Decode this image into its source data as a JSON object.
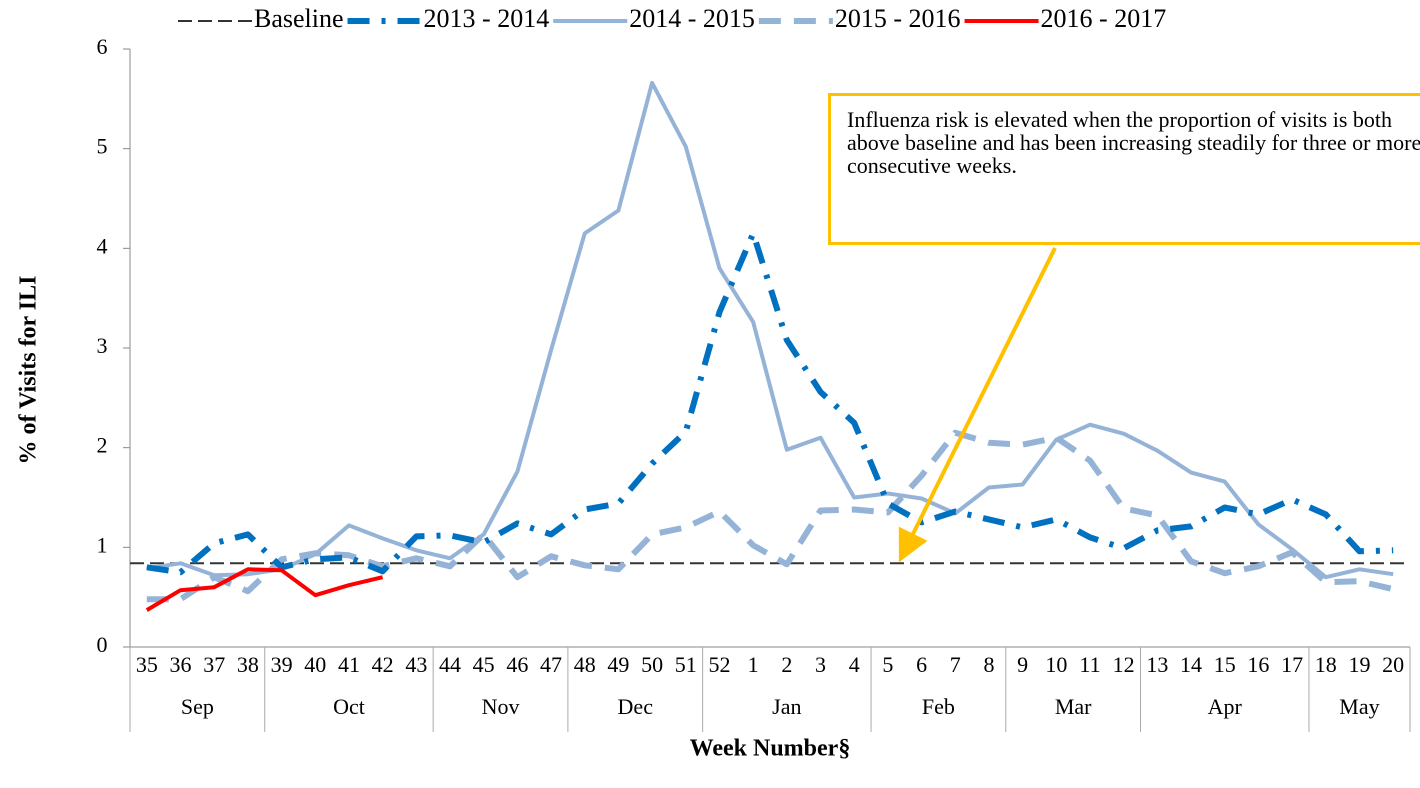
{
  "chart_data": {
    "type": "line",
    "ylabel": "% of Visits for ILI",
    "xlabel": "Week Number§",
    "categories": [
      "35",
      "36",
      "37",
      "38",
      "39",
      "40",
      "41",
      "42",
      "43",
      "44",
      "45",
      "46",
      "47",
      "48",
      "49",
      "50",
      "51",
      "52",
      "1",
      "2",
      "3",
      "4",
      "5",
      "6",
      "7",
      "8",
      "9",
      "10",
      "11",
      "12",
      "13",
      "14",
      "15",
      "16",
      "17",
      "18",
      "19",
      "20"
    ],
    "month_groups": [
      {
        "label": "Sep",
        "count": 4
      },
      {
        "label": "Oct",
        "count": 5
      },
      {
        "label": "Nov",
        "count": 4
      },
      {
        "label": "Dec",
        "count": 4
      },
      {
        "label": "Jan",
        "count": 5
      },
      {
        "label": "Feb",
        "count": 4
      },
      {
        "label": "Mar",
        "count": 4
      },
      {
        "label": "Apr",
        "count": 5
      },
      {
        "label": "May",
        "count": 3
      }
    ],
    "baseline": {
      "name": "Baseline",
      "value": 0.84,
      "color": "#333333"
    },
    "series": [
      {
        "name": "2013 - 2014",
        "color": "#0070c0",
        "style": "dash-dot",
        "values": [
          0.8,
          0.75,
          1.04,
          1.13,
          0.8,
          0.88,
          0.9,
          0.76,
          1.11,
          1.12,
          1.05,
          1.24,
          1.13,
          1.38,
          1.44,
          1.84,
          2.16,
          3.36,
          4.15,
          3.08,
          2.56,
          2.25,
          1.44,
          1.25,
          1.36,
          1.28,
          1.2,
          1.28,
          1.1,
          0.99,
          1.17,
          1.21,
          1.4,
          1.33,
          1.48,
          1.33,
          0.96,
          0.97
        ]
      },
      {
        "name": "2014 - 2015",
        "color": "#95b3d7",
        "style": "solid",
        "values": [
          0.79,
          0.84,
          0.72,
          0.73,
          0.78,
          0.93,
          1.22,
          1.09,
          0.97,
          0.89,
          1.13,
          1.76,
          2.98,
          4.15,
          4.38,
          5.66,
          5.02,
          3.8,
          3.26,
          1.98,
          2.1,
          1.5,
          1.54,
          1.49,
          1.34,
          1.6,
          1.63,
          2.08,
          2.23,
          2.14,
          1.97,
          1.75,
          1.66,
          1.23,
          0.98,
          0.7,
          0.78,
          0.73
        ]
      },
      {
        "name": "2015 - 2016",
        "color": "#95b3d7",
        "style": "dash",
        "values": [
          0.48,
          0.48,
          0.7,
          0.56,
          0.88,
          0.94,
          0.92,
          0.81,
          0.89,
          0.81,
          1.13,
          0.7,
          0.91,
          0.82,
          0.78,
          1.13,
          1.2,
          1.36,
          1.02,
          0.83,
          1.37,
          1.38,
          1.35,
          1.72,
          2.15,
          2.05,
          2.03,
          2.1,
          1.87,
          1.39,
          1.32,
          0.86,
          0.74,
          0.81,
          0.95,
          0.65,
          0.66,
          0.58
        ]
      },
      {
        "name": "2016 - 2017",
        "color": "#ff0000",
        "style": "solid",
        "values": [
          0.37,
          0.57,
          0.6,
          0.78,
          0.77,
          0.52,
          0.62,
          0.7,
          null,
          null,
          null,
          null,
          null,
          null,
          null,
          null,
          null,
          null,
          null,
          null,
          null,
          null,
          null,
          null,
          null,
          null,
          null,
          null,
          null,
          null,
          null,
          null,
          null,
          null,
          null,
          null,
          null,
          null
        ]
      }
    ],
    "ylim": [
      0,
      6
    ],
    "yticks": [
      0,
      1,
      2,
      3,
      4,
      5,
      6
    ],
    "legend": "top",
    "annotation": "Influenza risk is elevated when the proportion of visits is both above baseline and has been increasing steadily for three or more consecutive weeks."
  }
}
